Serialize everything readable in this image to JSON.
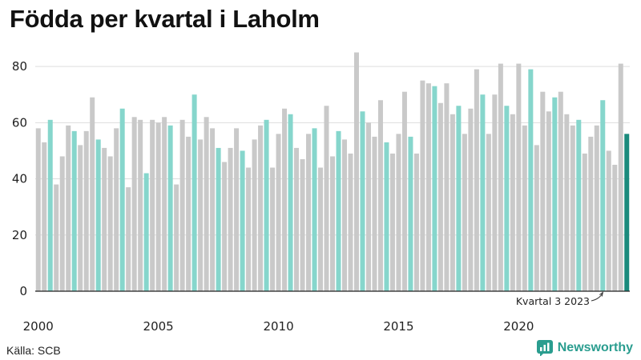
{
  "title": "Födda per kvartal i Laholm",
  "source": "Källa: SCB",
  "brand": {
    "name": "Newsworthy",
    "icon": "newsworthy-logo-icon"
  },
  "colors": {
    "other": "#c9c9c9",
    "q3": "#86d6cc",
    "latest": "#1a8a7c",
    "grid": "#dddddd",
    "axis": "#222222"
  },
  "chart_data": {
    "type": "bar",
    "title": "Födda per kvartal i Laholm",
    "xlabel": "",
    "ylabel": "",
    "ylim": [
      0,
      88
    ],
    "yticks": [
      0,
      20,
      40,
      60,
      80
    ],
    "xticks": [
      {
        "label": "2000",
        "index": 0
      },
      {
        "label": "2005",
        "index": 20
      },
      {
        "label": "2010",
        "index": 40
      },
      {
        "label": "2015",
        "index": 60
      },
      {
        "label": "2020",
        "index": 80
      }
    ],
    "start": {
      "year": 2000,
      "quarter": 1
    },
    "highlight_quarter": 3,
    "values": [
      58,
      53,
      61,
      38,
      48,
      59,
      57,
      52,
      57,
      69,
      54,
      51,
      48,
      58,
      65,
      37,
      62,
      61,
      42,
      61,
      60,
      62,
      59,
      38,
      61,
      55,
      70,
      54,
      62,
      58,
      51,
      46,
      51,
      58,
      50,
      44,
      54,
      59,
      61,
      44,
      56,
      65,
      63,
      51,
      47,
      56,
      58,
      44,
      66,
      48,
      57,
      54,
      49,
      85,
      64,
      60,
      55,
      68,
      53,
      49,
      56,
      71,
      55,
      49,
      75,
      74,
      73,
      67,
      74,
      63,
      66,
      56,
      65,
      79,
      70,
      56,
      70,
      81,
      66,
      63,
      81,
      59,
      79,
      52,
      71,
      64,
      69,
      71,
      63,
      59,
      61,
      49,
      55,
      59,
      68,
      50,
      45,
      81,
      56
    ],
    "annotation": {
      "text": "Kvartal 3 2023",
      "index": 94
    }
  }
}
